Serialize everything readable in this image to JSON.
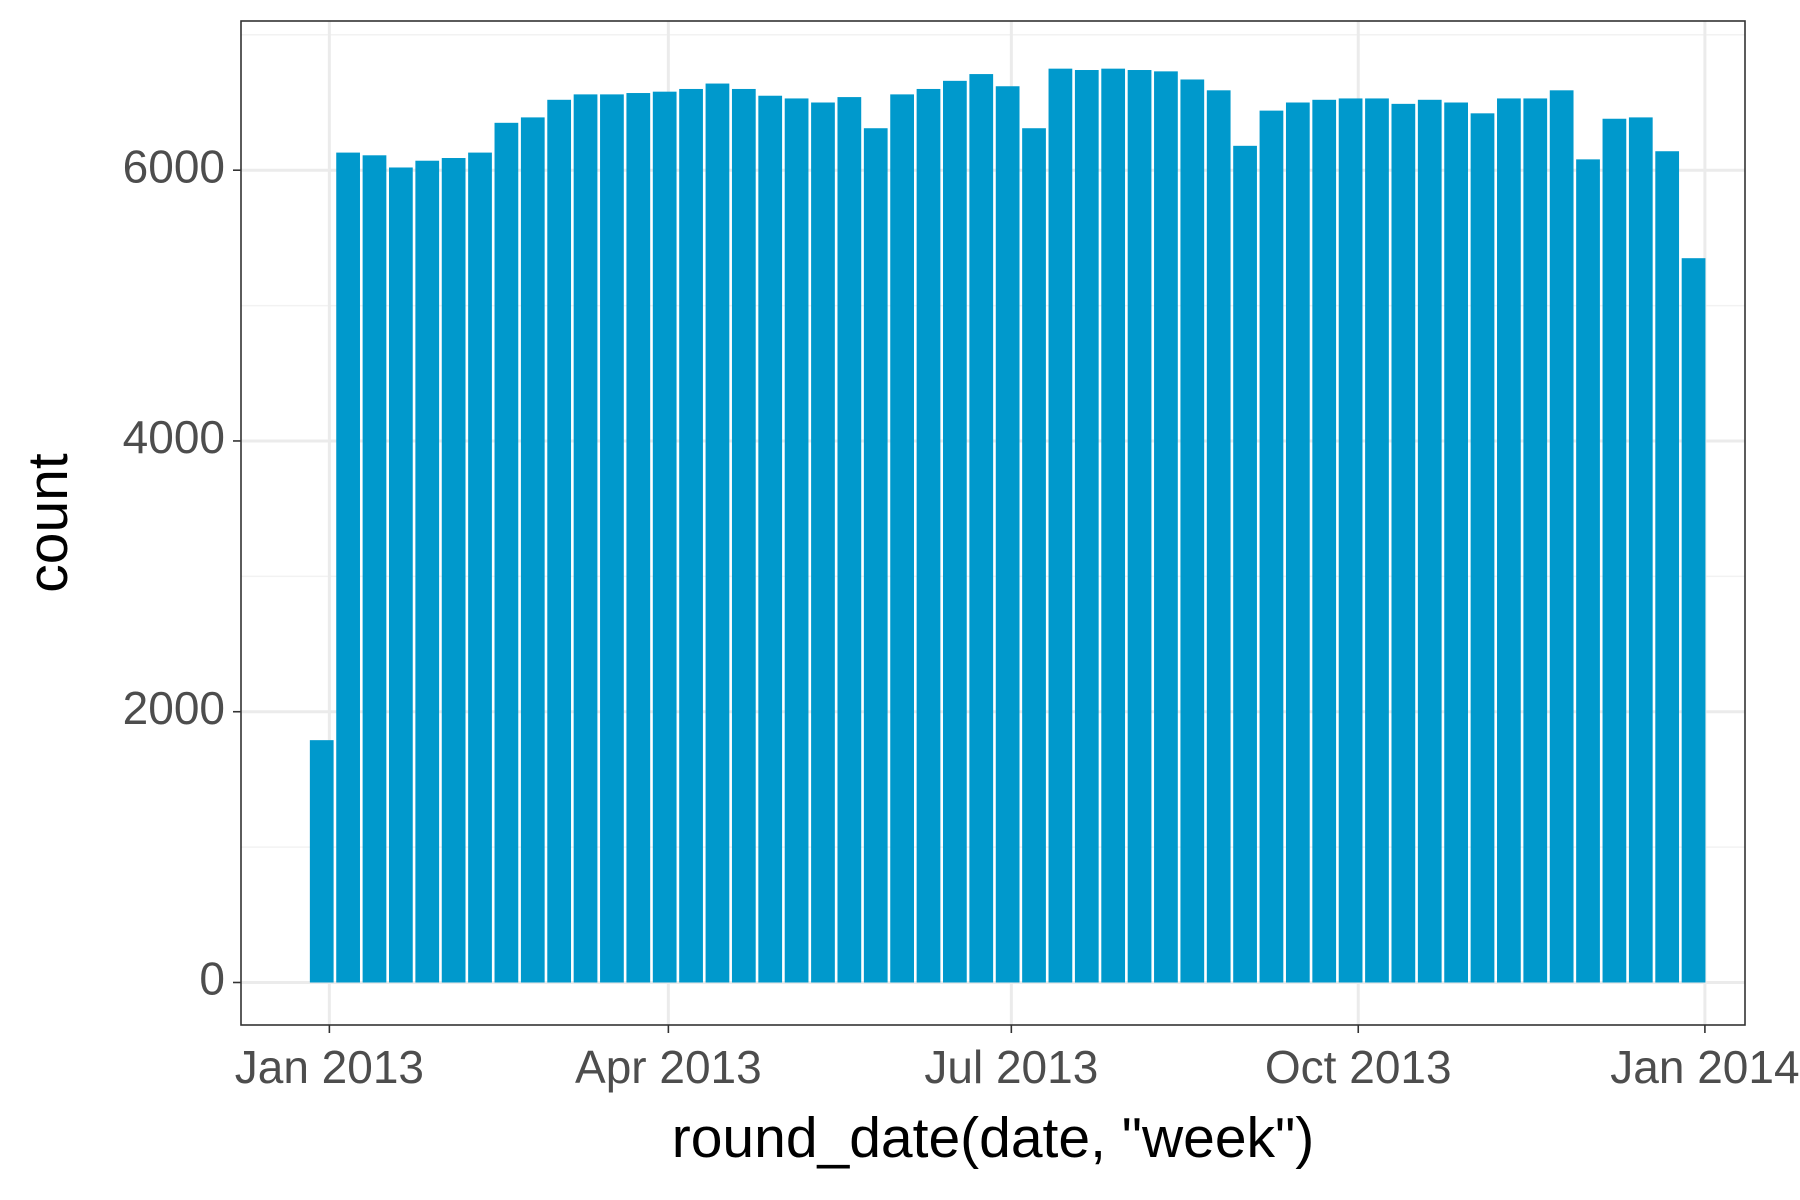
{
  "chart_data": {
    "type": "bar",
    "x_label": "round_date(date, \"week\")",
    "y_label": "count",
    "categories": [
      null,
      null,
      null,
      null,
      null,
      null,
      null,
      null,
      null,
      null,
      null,
      null,
      null,
      null,
      null,
      null,
      null,
      null,
      null,
      null,
      null,
      null,
      null,
      null,
      null,
      null,
      null,
      null,
      null,
      null,
      null,
      null,
      null,
      null,
      null,
      null,
      null,
      null,
      null,
      null,
      null,
      null,
      null,
      null,
      null,
      null,
      null,
      null,
      null,
      null,
      null,
      null,
      null
    ],
    "values": [
      1790,
      6130,
      6110,
      6020,
      6070,
      6090,
      6130,
      6350,
      6390,
      6520,
      6560,
      6560,
      6570,
      6580,
      6600,
      6640,
      6600,
      6550,
      6530,
      6500,
      6540,
      6310,
      6560,
      6600,
      6660,
      6710,
      6620,
      6310,
      6750,
      6740,
      6750,
      6740,
      6730,
      6670,
      6590,
      6180,
      6440,
      6500,
      6520,
      6530,
      6530,
      6490,
      6520,
      6500,
      6420,
      6530,
      6530,
      6590,
      6080,
      6380,
      6390,
      6140,
      5350
    ],
    "color": "#0099cc",
    "xlim": [
      -3.06,
      53.95
    ],
    "xticks": [
      {
        "value": 0.29,
        "label": "Jan 2013"
      },
      {
        "value": 13.14,
        "label": "Apr 2013"
      },
      {
        "value": 26.14,
        "label": "Jul 2013"
      },
      {
        "value": 39.29,
        "label": "Oct 2013"
      },
      {
        "value": 52.43,
        "label": "Jan 2014"
      }
    ],
    "ylim": [
      -314,
      7102
    ],
    "yticks": [
      0,
      2000,
      4000,
      6000
    ],
    "yminor": [
      1000,
      3000,
      5000,
      7000
    ],
    "grid": true
  }
}
